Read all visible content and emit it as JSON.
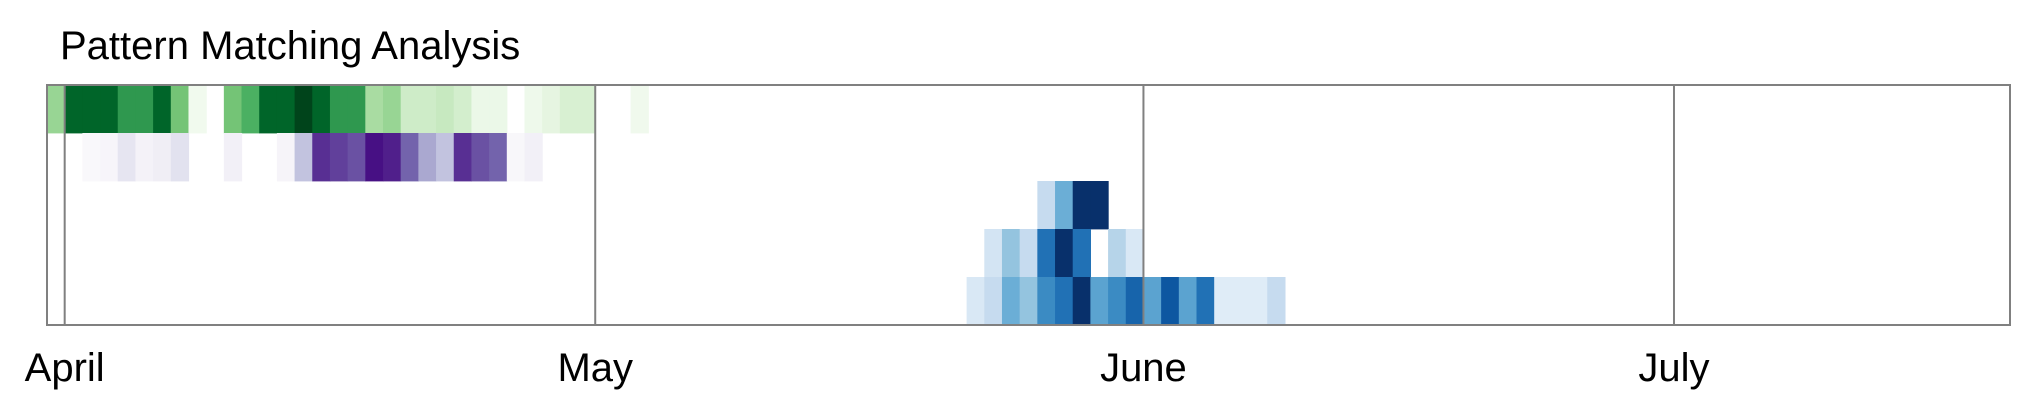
{
  "chart_data": {
    "type": "heatmap",
    "title": "Pattern Matching Analysis",
    "xlabel": "",
    "ylabel": "",
    "date_range": [
      "2024-03-31",
      "2024-07-20"
    ],
    "month_ticks": [
      {
        "label": "April",
        "date": "2024-04-01"
      },
      {
        "label": "May",
        "date": "2024-05-01"
      },
      {
        "label": "June",
        "date": "2024-06-01"
      },
      {
        "label": "July",
        "date": "2024-07-01"
      }
    ],
    "colormaps": {
      "Greens": [
        "#f7fcf5",
        "#e5f5e0",
        "#c7e9c0",
        "#a1d99b",
        "#74c476",
        "#41ab5d",
        "#238b45",
        "#006d2c",
        "#00441b"
      ],
      "Purples": [
        "#fcfbfd",
        "#efedf5",
        "#dadaeb",
        "#bcbddc",
        "#9e9ac8",
        "#807dba",
        "#6a51a3",
        "#54278f",
        "#3f007d"
      ],
      "Blues": [
        "#f7fbff",
        "#deebf7",
        "#c6dbef",
        "#9ecae1",
        "#6baed6",
        "#4292c6",
        "#2171b5",
        "#08519c",
        "#08306b"
      ]
    },
    "rows": [
      {
        "colormap": "Greens",
        "start": "2024-03-31",
        "values": [
          0.4,
          0.9,
          0.9,
          0.9,
          0.7,
          0.7,
          0.9,
          0.5,
          0.04,
          0.0,
          0.5,
          0.6,
          0.9,
          0.9,
          1.0,
          0.9,
          0.7,
          0.7,
          0.35,
          0.4,
          0.22,
          0.22,
          0.25,
          0.2,
          0.08,
          0.08,
          0.0,
          0.06,
          0.12,
          0.18,
          0.18,
          0.0,
          0.0,
          0.05
        ]
      },
      {
        "colormap": "Purples",
        "start": "2024-03-31",
        "values": [
          0.0,
          0.0,
          0.03,
          0.05,
          0.18,
          0.08,
          0.12,
          0.2,
          0.0,
          0.0,
          0.1,
          0.0,
          0.0,
          0.06,
          0.35,
          0.85,
          0.8,
          0.75,
          0.95,
          0.9,
          0.7,
          0.45,
          0.35,
          0.85,
          0.75,
          0.7,
          0.04,
          0.1
        ]
      },
      {
        "colormap": "Blues",
        "start": "2024-05-26",
        "values": [
          0.25,
          0.5,
          1.0,
          1.0
        ]
      },
      {
        "colormap": "Blues",
        "start": "2024-05-23",
        "values": [
          0.18,
          0.4,
          0.25,
          0.75,
          1.0,
          0.75,
          0.0,
          0.3,
          0.15
        ]
      },
      {
        "colormap": "Blues",
        "start": "2024-05-22",
        "values": [
          0.15,
          0.25,
          0.5,
          0.4,
          0.65,
          0.75,
          1.0,
          0.55,
          0.65,
          0.8,
          0.55,
          0.85,
          0.55,
          0.75,
          0.12,
          0.12,
          0.12,
          0.25
        ]
      }
    ],
    "grid": false,
    "legend": "none"
  }
}
